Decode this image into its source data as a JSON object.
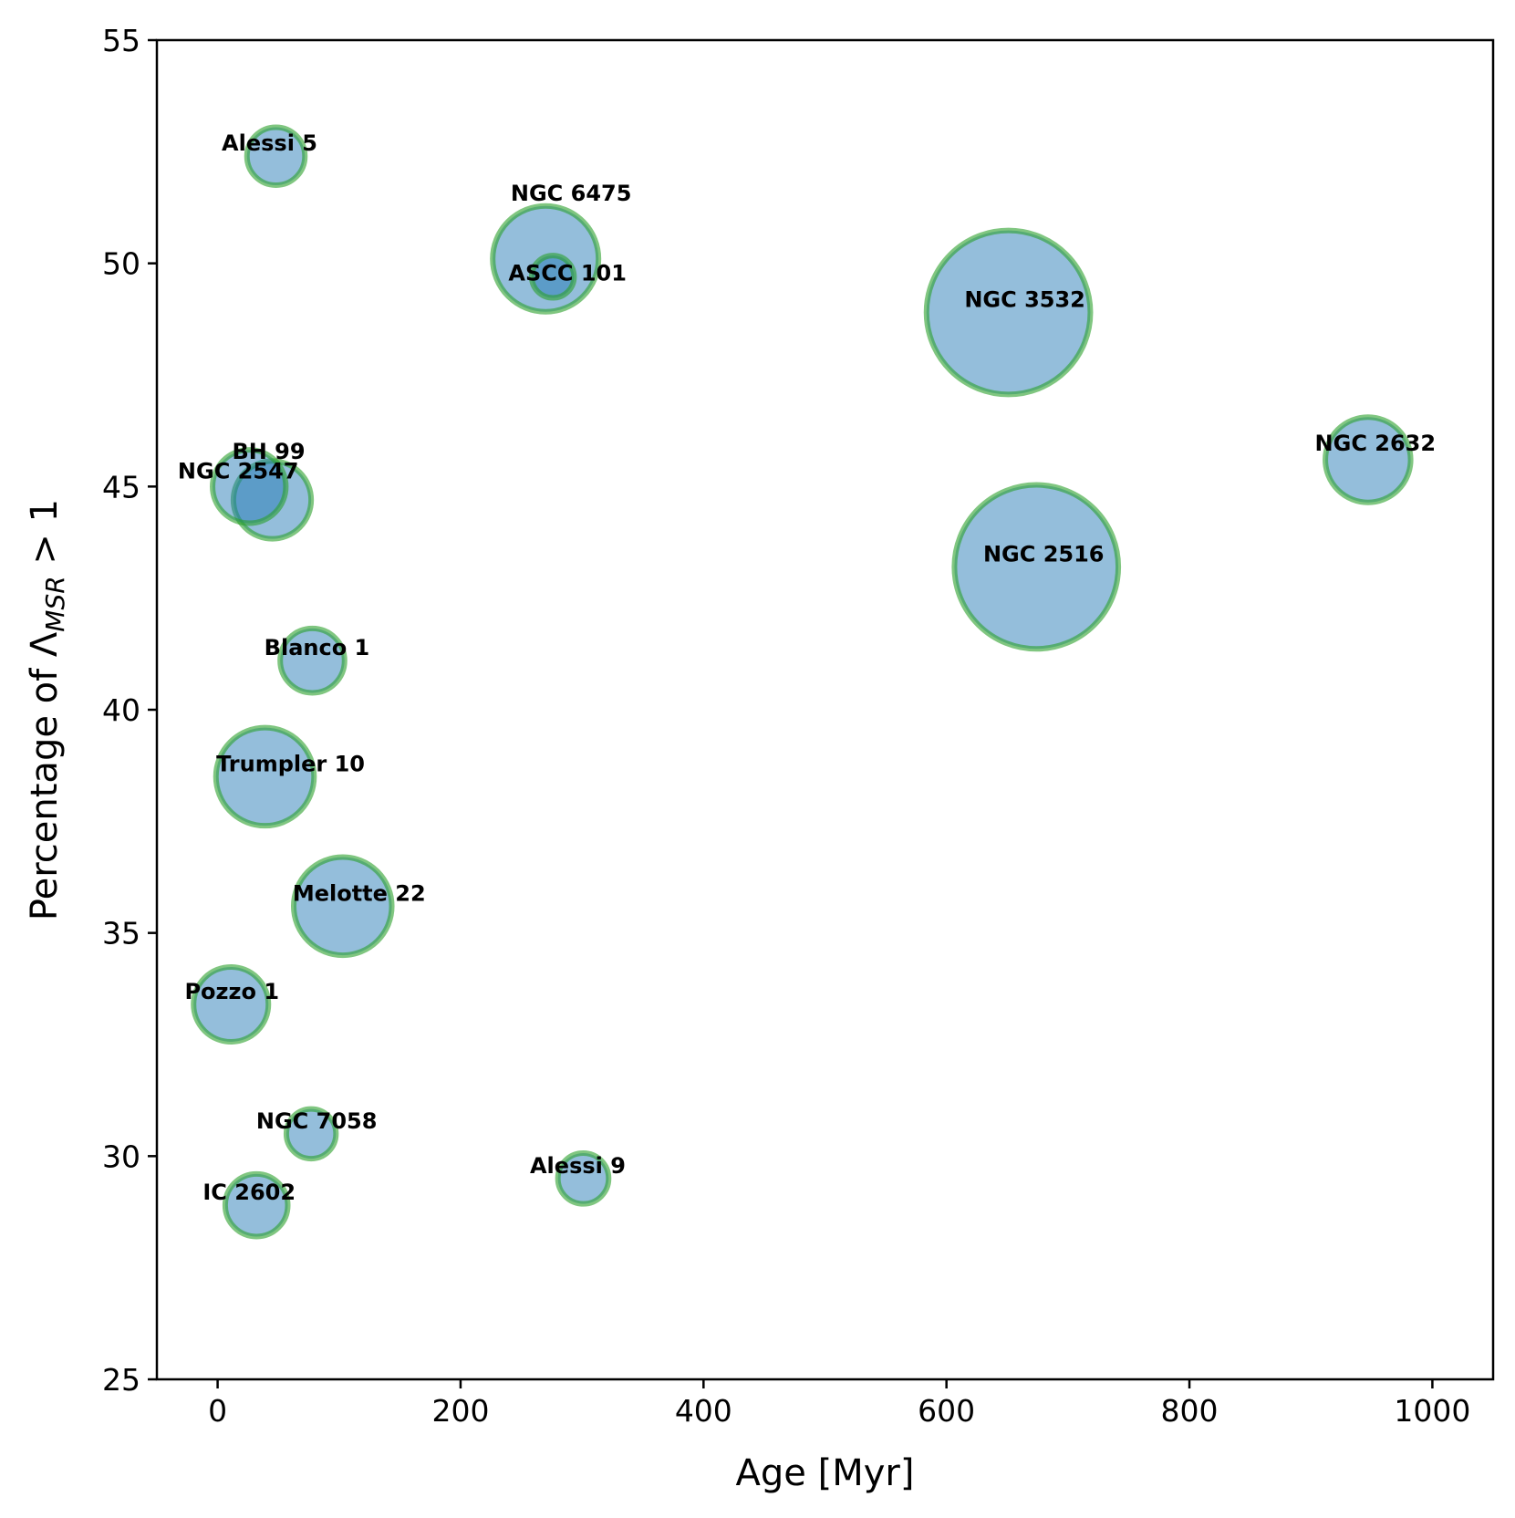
{
  "chart_data": {
    "type": "scatter",
    "xlabel": "Age [Myr]",
    "ylabel": "Percentage of Λ",
    "ylabel_sub": "MSR",
    "ylabel_tail": " > 1",
    "xlim": [
      -50,
      1050
    ],
    "ylim": [
      25,
      55
    ],
    "xticks": [
      0,
      200,
      400,
      600,
      800,
      1000
    ],
    "yticks": [
      25,
      30,
      35,
      40,
      45,
      50,
      55
    ],
    "grid": false,
    "point_colors": {
      "fill": "#1f77b4",
      "edge": "#2ca02c"
    },
    "points": [
      {
        "name": "Alessi 5",
        "x": 48,
        "y": 52.4,
        "size": 0.3
      },
      {
        "name": "NGC 6475",
        "x": 270,
        "y": 50.1,
        "size": 1.0
      },
      {
        "name": "ASCC 101",
        "x": 276,
        "y": 49.7,
        "size": 0.16
      },
      {
        "name": "NGC 3532",
        "x": 651,
        "y": 48.9,
        "size": 2.4
      },
      {
        "name": "NGC 2632",
        "x": 947,
        "y": 45.6,
        "size": 0.65
      },
      {
        "name": "BH 99",
        "x": 45,
        "y": 44.7,
        "size": 0.54
      },
      {
        "name": "NGC 2547",
        "x": 26,
        "y": 45.0,
        "size": 0.48
      },
      {
        "name": "NGC 2516",
        "x": 674,
        "y": 43.2,
        "size": 2.4
      },
      {
        "name": "Blanco 1",
        "x": 78,
        "y": 41.1,
        "size": 0.37
      },
      {
        "name": "Trumpler 10",
        "x": 39,
        "y": 38.5,
        "size": 0.86
      },
      {
        "name": "Melotte 22",
        "x": 103,
        "y": 35.6,
        "size": 0.86
      },
      {
        "name": "Pozzo 1",
        "x": 11,
        "y": 33.4,
        "size": 0.5
      },
      {
        "name": "NGC 7058",
        "x": 77,
        "y": 30.5,
        "size": 0.22
      },
      {
        "name": "Alessi 9",
        "x": 301,
        "y": 29.5,
        "size": 0.23
      },
      {
        "name": "IC 2602",
        "x": 32,
        "y": 28.9,
        "size": 0.35
      }
    ]
  }
}
